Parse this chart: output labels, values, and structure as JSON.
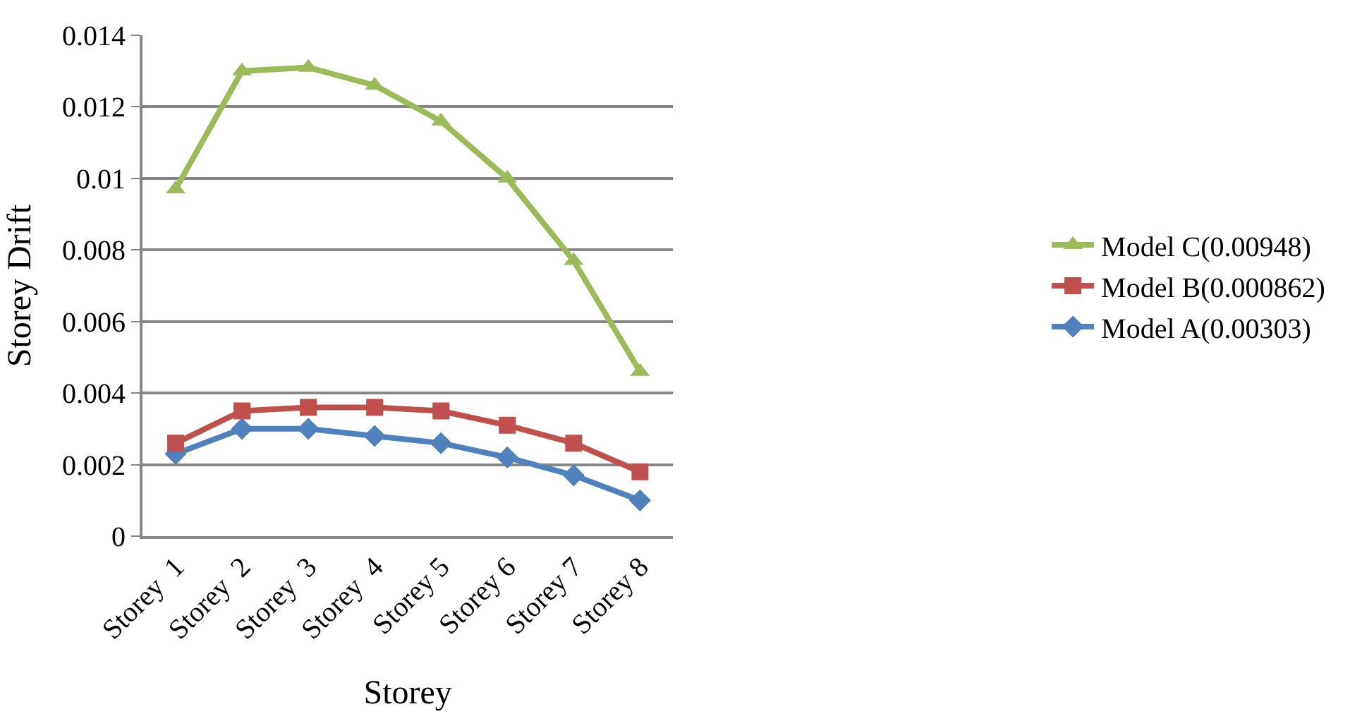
{
  "chart_data": {
    "type": "line",
    "xlabel": "Storey",
    "ylabel": "Storey Drift",
    "categories": [
      "Storey  1",
      "Storey  2",
      "Storey  3",
      "Storey  4",
      "Storey 5",
      "Storey 6",
      "Storey 7",
      "Storey 8"
    ],
    "series": [
      {
        "name": "Model A(0.00303)",
        "color": "#4f81bd",
        "marker": "diamond",
        "values": [
          0.0023,
          0.003,
          0.003,
          0.0028,
          0.0026,
          0.0022,
          0.0017,
          0.001
        ]
      },
      {
        "name": "Model B(0.000862)",
        "color": "#c0504d",
        "marker": "square",
        "values": [
          0.0026,
          0.0035,
          0.0036,
          0.0036,
          0.0035,
          0.0031,
          0.0026,
          0.0018
        ]
      },
      {
        "name": "Model C(0.00948)",
        "color": "#9bbb59",
        "marker": "triangle",
        "values": [
          0.0097,
          0.013,
          0.0131,
          0.0126,
          0.0116,
          0.01,
          0.0077,
          0.0046
        ]
      }
    ],
    "ylim": [
      0,
      0.014
    ],
    "yticks": [
      0,
      0.002,
      0.004,
      0.006,
      0.008,
      0.01,
      0.012,
      0.014
    ],
    "grid": "y",
    "legend": "right"
  }
}
